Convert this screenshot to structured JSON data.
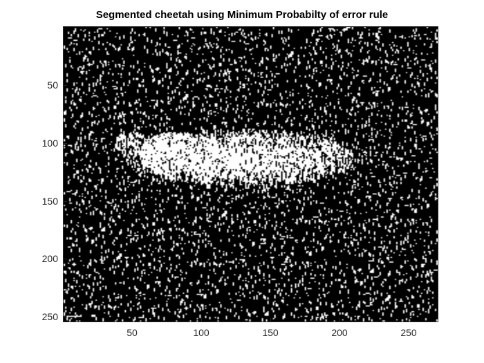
{
  "title": "Segmented cheetah using Minimum Probabilty of error rule",
  "image": {
    "description_type": "binary-segmentation-mask",
    "background_color": "#000000",
    "foreground_color": "#ffffff",
    "width_units": 270,
    "height_units": 255
  },
  "axes": {
    "xlim": [
      0.5,
      270.5
    ],
    "ylim": [
      0.5,
      255.5
    ],
    "y_reversed": true,
    "x_ticks": [
      "50",
      "100",
      "150",
      "200",
      "250"
    ],
    "y_ticks": [
      "50",
      "100",
      "150",
      "200",
      "250"
    ]
  }
}
